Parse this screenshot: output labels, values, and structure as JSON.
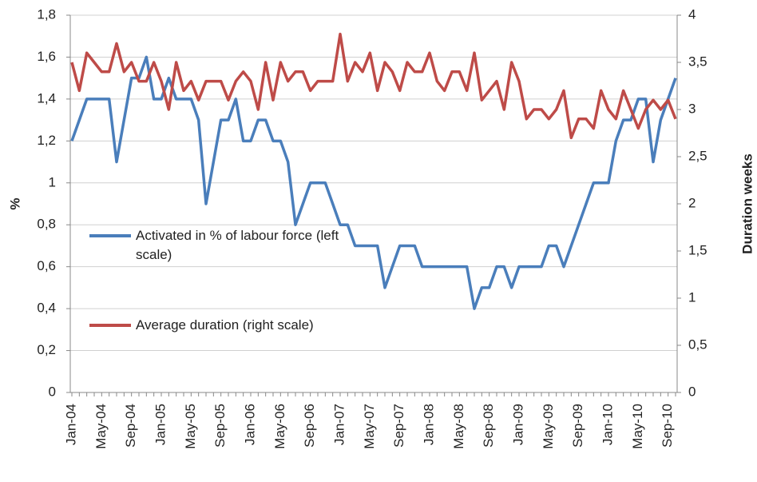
{
  "chart_data": {
    "type": "line",
    "categories": [
      "Jan-04",
      null,
      null,
      null,
      "May-04",
      null,
      null,
      null,
      "Sep-04",
      null,
      null,
      null,
      "Jan-05",
      null,
      null,
      null,
      "May-05",
      null,
      null,
      null,
      "Sep-05",
      null,
      null,
      null,
      "Jan-06",
      null,
      null,
      null,
      "May-06",
      null,
      null,
      null,
      "Sep-06",
      null,
      null,
      null,
      "Jan-07",
      null,
      null,
      null,
      "May-07",
      null,
      null,
      null,
      "Sep-07",
      null,
      null,
      null,
      "Jan-08",
      null,
      null,
      null,
      "May-08",
      null,
      null,
      null,
      "Sep-08",
      null,
      null,
      null,
      "Jan-09",
      null,
      null,
      null,
      "May-09",
      null,
      null,
      null,
      "Sep-09",
      null,
      null,
      null,
      "Jan-10",
      null,
      null,
      null,
      "May-10",
      null,
      null,
      null,
      "Sep-10",
      null
    ],
    "series": [
      {
        "name": "Activated in % of labour force (left scale)",
        "color": "#4a7ebb",
        "axis": "y",
        "values": [
          1.2,
          1.3,
          1.4,
          1.4,
          1.4,
          1.4,
          1.1,
          1.3,
          1.5,
          1.5,
          1.6,
          1.4,
          1.4,
          1.5,
          1.4,
          1.4,
          1.4,
          1.3,
          0.9,
          1.1,
          1.3,
          1.3,
          1.4,
          1.2,
          1.2,
          1.3,
          1.3,
          1.2,
          1.2,
          1.1,
          0.8,
          0.9,
          1.0,
          1.0,
          1.0,
          0.9,
          0.8,
          0.8,
          0.7,
          0.7,
          0.7,
          0.7,
          0.5,
          0.6,
          0.7,
          0.7,
          0.7,
          0.6,
          0.6,
          0.6,
          0.6,
          0.6,
          0.6,
          0.6,
          0.4,
          0.5,
          0.5,
          0.6,
          0.6,
          0.5,
          0.6,
          0.6,
          0.6,
          0.6,
          0.7,
          0.7,
          0.6,
          0.7,
          0.8,
          0.9,
          1.0,
          1.0,
          1.0,
          1.2,
          1.3,
          1.3,
          1.4,
          1.4,
          1.1,
          1.3,
          1.4,
          1.5
        ]
      },
      {
        "name": "Average duration (right scale)",
        "color": "#be4b48",
        "axis": "y2",
        "values": [
          3.5,
          3.2,
          3.6,
          3.5,
          3.4,
          3.4,
          3.7,
          3.4,
          3.5,
          3.3,
          3.3,
          3.5,
          3.3,
          3.0,
          3.5,
          3.2,
          3.3,
          3.1,
          3.3,
          3.3,
          3.3,
          3.1,
          3.3,
          3.4,
          3.3,
          3.0,
          3.5,
          3.1,
          3.5,
          3.3,
          3.4,
          3.4,
          3.2,
          3.3,
          3.3,
          3.3,
          3.8,
          3.3,
          3.5,
          3.4,
          3.6,
          3.2,
          3.5,
          3.4,
          3.2,
          3.5,
          3.4,
          3.4,
          3.6,
          3.3,
          3.2,
          3.4,
          3.4,
          3.2,
          3.6,
          3.1,
          3.2,
          3.3,
          3.0,
          3.5,
          3.3,
          2.9,
          3.0,
          3.0,
          2.9,
          3.0,
          3.2,
          2.7,
          2.9,
          2.9,
          2.8,
          3.2,
          3.0,
          2.9,
          3.2,
          3.0,
          2.8,
          3.0,
          3.1,
          3.0,
          3.1,
          2.9
        ]
      }
    ],
    "ylabel": "%",
    "y2label": "Duration weeks",
    "ylim": [
      0,
      1.8
    ],
    "yticks": [
      0,
      {
        "value": 0.2,
        "label": "0,2"
      },
      {
        "value": 0.4,
        "label": "0,4"
      },
      {
        "value": 0.6,
        "label": "0,6"
      },
      {
        "value": 0.8,
        "label": "0,8"
      },
      1,
      {
        "value": 1.2,
        "label": "1,2"
      },
      {
        "value": 1.4,
        "label": "1,4"
      },
      {
        "value": 1.6,
        "label": "1,6"
      },
      {
        "value": 1.8,
        "label": "1,8"
      }
    ],
    "y2lim": [
      0,
      4
    ],
    "y2ticks": [
      0,
      {
        "value": 0.5,
        "label": "0,5"
      },
      1,
      {
        "value": 1.5,
        "label": "1,5"
      },
      2,
      {
        "value": 2.5,
        "label": "2,5"
      },
      3,
      {
        "value": 3.5,
        "label": "3,5"
      },
      4
    ],
    "grid": true
  }
}
